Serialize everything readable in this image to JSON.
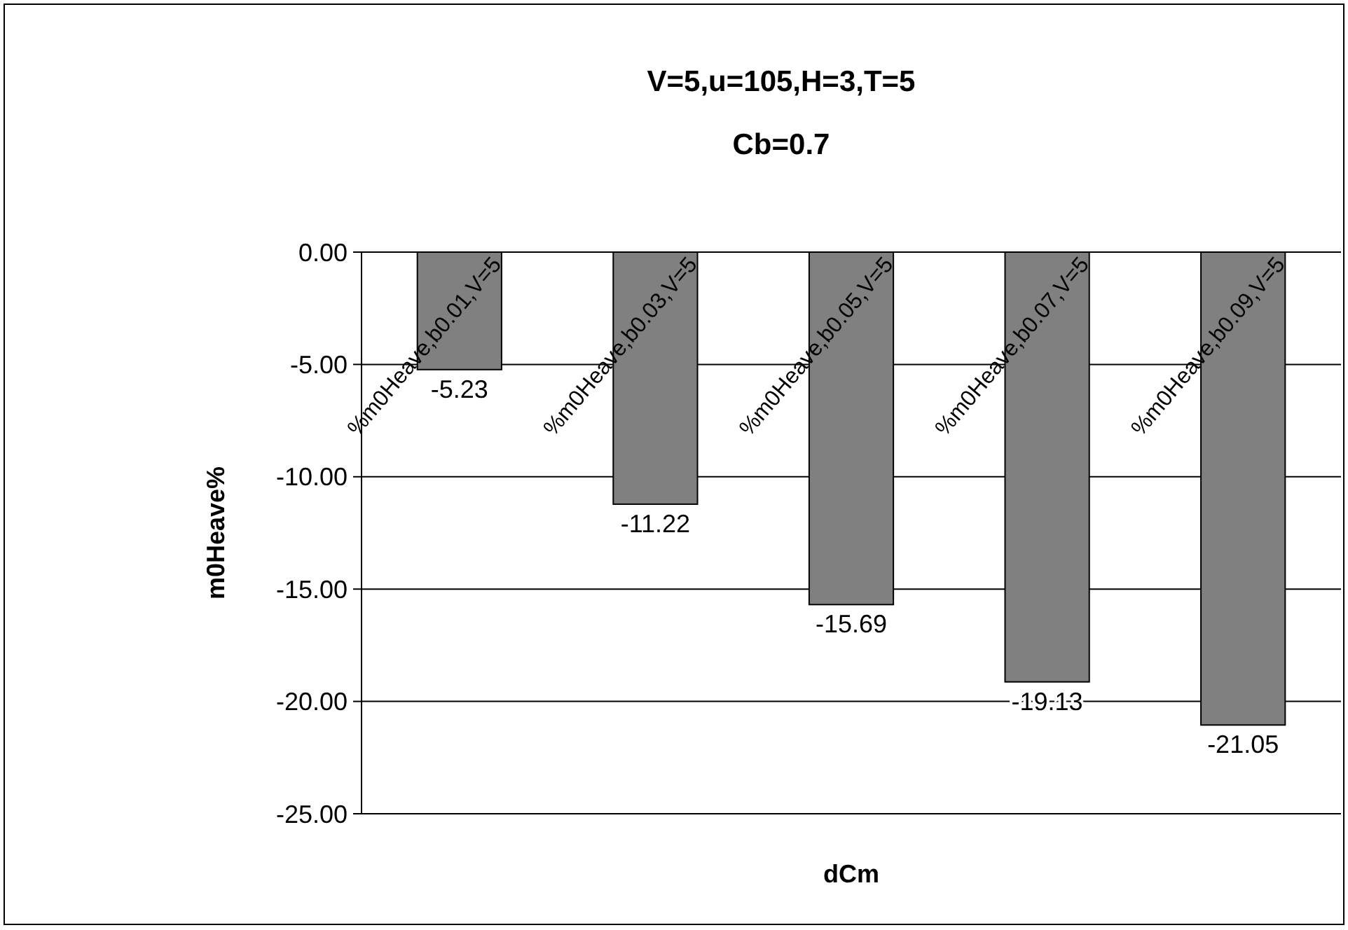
{
  "chart_data": {
    "type": "bar",
    "title": "V=5,u=105,H=3,T=5",
    "subtitle": "Cb=0.7",
    "xlabel": "dCm",
    "ylabel": "m0Heave%",
    "categories": [
      "%m0Heave,b0.01,V=5",
      "%m0Heave,b0.03,V=5",
      "%m0Heave,b0.05,V=5",
      "%m0Heave,b0.07,V=5",
      "%m0Heave,b0.09,V=5"
    ],
    "values": [
      -5.23,
      -11.22,
      -15.69,
      -19.13,
      -21.05
    ],
    "color": "#808080",
    "ylim": [
      -25,
      0
    ],
    "yticks": [
      {
        "value": 0,
        "label": "0.00"
      },
      {
        "value": -5,
        "label": "-5.00"
      },
      {
        "value": -10,
        "label": "-10.00"
      },
      {
        "value": -15,
        "label": "-15.00"
      },
      {
        "value": -20,
        "label": "-20.00"
      },
      {
        "value": -25,
        "label": "-25.00"
      }
    ],
    "grid": "y",
    "data_labels": true
  }
}
